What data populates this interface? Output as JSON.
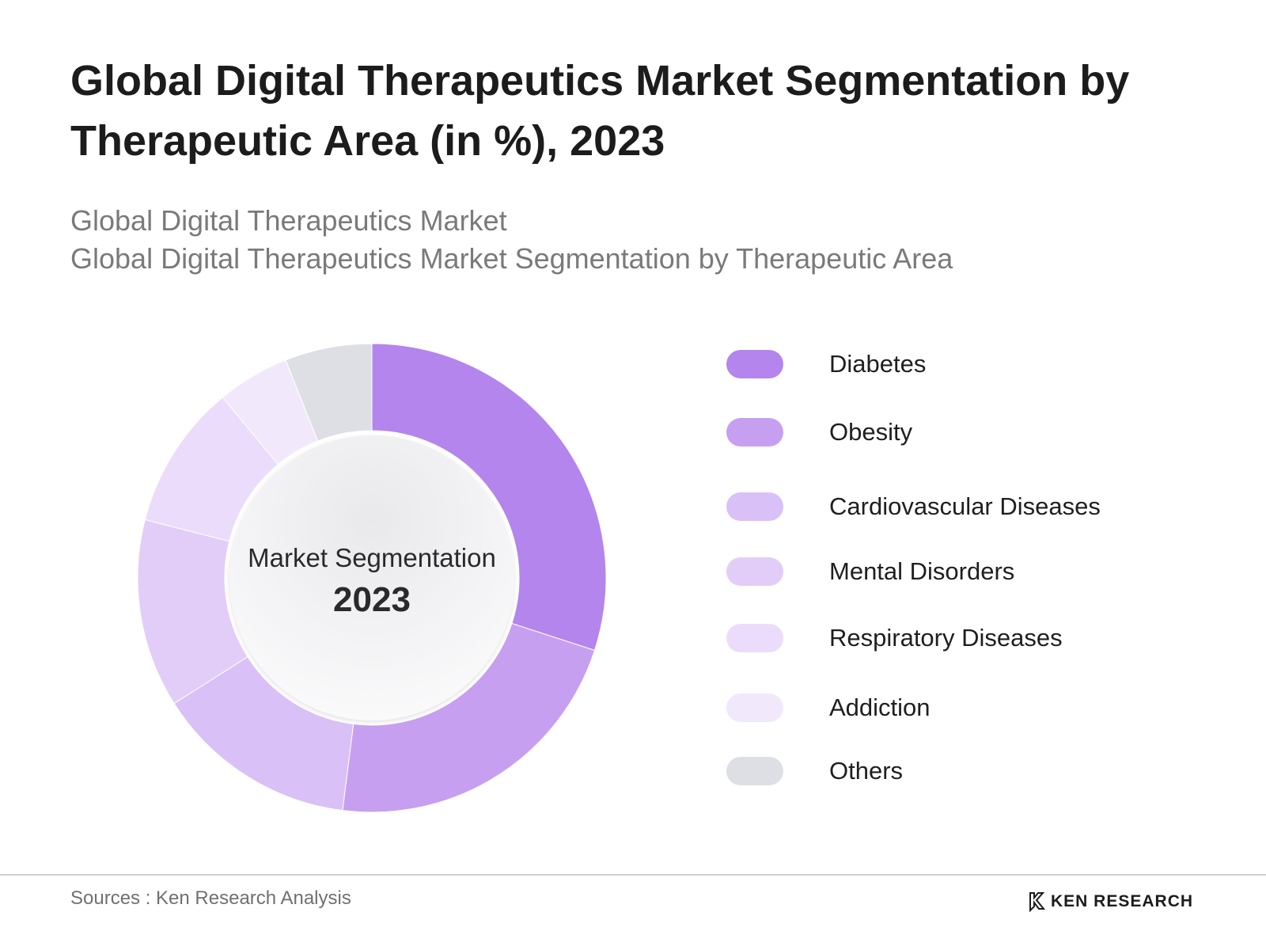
{
  "header": {
    "title": "Global Digital Therapeutics Market Segmentation by Therapeutic Area (in %), 2023",
    "subtitle_1": "Global Digital Therapeutics Market",
    "subtitle_2": "Global Digital Therapeutics Market Segmentation by Therapeutic Area"
  },
  "chart_data": {
    "type": "pie",
    "variant": "donut",
    "categories": [
      "Diabetes",
      "Obesity",
      "Cardiovascular Diseases",
      "Mental Disorders",
      "Respiratory Diseases",
      "Addiction",
      "Others"
    ],
    "values": [
      30,
      22,
      14,
      13,
      10,
      5,
      6
    ],
    "colors": [
      "#B485EC",
      "#C79FF0",
      "#D9C0F6",
      "#E2CDF8",
      "#EADCFA",
      "#F1E8FC",
      "#DEDFE5"
    ],
    "center_label": "Market Segmentation",
    "center_year": "2023",
    "legend_position": "right"
  },
  "footer": {
    "source": "Sources : Ken Research Analysis",
    "brand": "KEN RESEARCH"
  }
}
